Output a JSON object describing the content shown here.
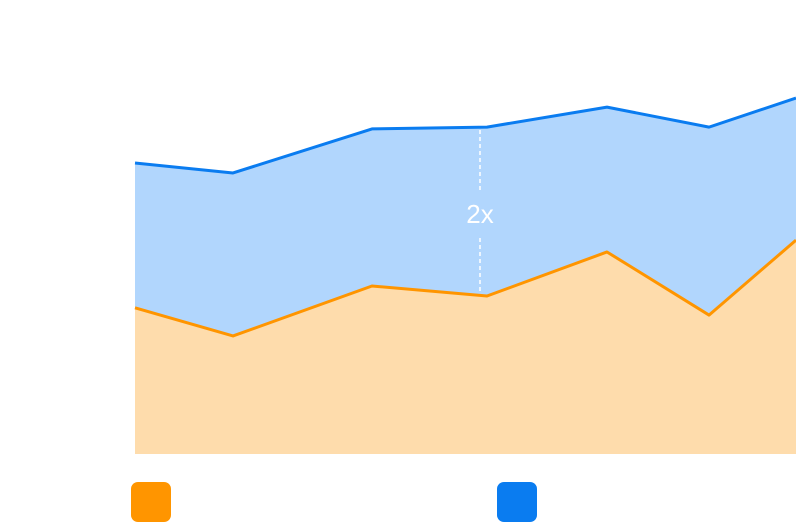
{
  "chart_data": {
    "type": "area",
    "annotation": "2x",
    "x": [
      0,
      98,
      237,
      352,
      472,
      574,
      661
    ],
    "xlim": [
      0,
      661
    ],
    "ylim": [
      0,
      100
    ],
    "grid": false,
    "series": [
      {
        "color": "#ff9500",
        "fill": "#fedcac",
        "values": [
          32.2,
          26.0,
          37.0,
          34.8,
          44.5,
          30.6,
          47.1
        ]
      },
      {
        "color": "#0a7cf0",
        "fill": "#b1d6fd",
        "values": [
          64.1,
          61.9,
          71.6,
          72.0,
          76.4,
          72.0,
          78.4
        ]
      }
    ]
  }
}
